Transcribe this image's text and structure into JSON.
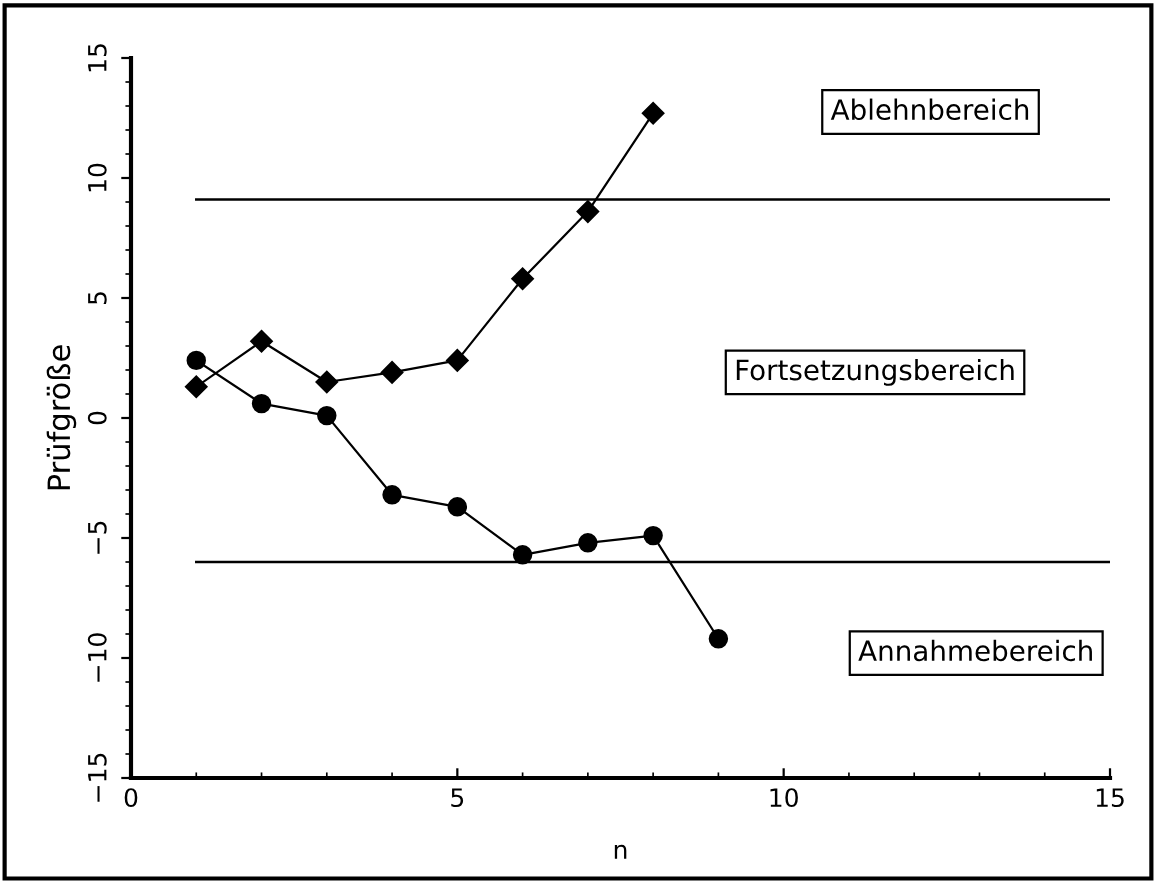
{
  "chart_data": {
    "type": "line",
    "xlabel": "n",
    "ylabel": "Prüfgröße",
    "xlim": [
      0,
      15
    ],
    "ylim": [
      -15,
      15
    ],
    "xticks": [
      0,
      5,
      10,
      15
    ],
    "yticks": [
      -15,
      -10,
      -5,
      0,
      5,
      10,
      15
    ],
    "grid": false,
    "legend": false,
    "series": [
      {
        "x": [
          1,
          2,
          3,
          4,
          5,
          6,
          7,
          8
        ],
        "values": [
          1.3,
          3.2,
          1.5,
          1.9,
          2.4,
          5.8,
          8.6,
          12.7
        ],
        "color": "#000000",
        "marker": "diamond"
      },
      {
        "x": [
          1,
          2,
          3,
          4,
          5,
          6,
          7,
          8,
          9
        ],
        "values": [
          2.4,
          0.6,
          0.1,
          -3.2,
          -3.7,
          -5.7,
          -5.2,
          -4.9,
          -9.2
        ],
        "color": "#000000",
        "marker": "circle"
      }
    ],
    "ref_lines": [
      {
        "axis": "y",
        "value": 9.1,
        "color": "#000000",
        "line_style": "solid"
      },
      {
        "axis": "y",
        "value": -6.0,
        "color": "#000000",
        "line_style": "solid"
      }
    ],
    "annotations": [
      "Ablehnbereich",
      "Fortsetzungsbereich",
      "Annahmebereich"
    ]
  }
}
